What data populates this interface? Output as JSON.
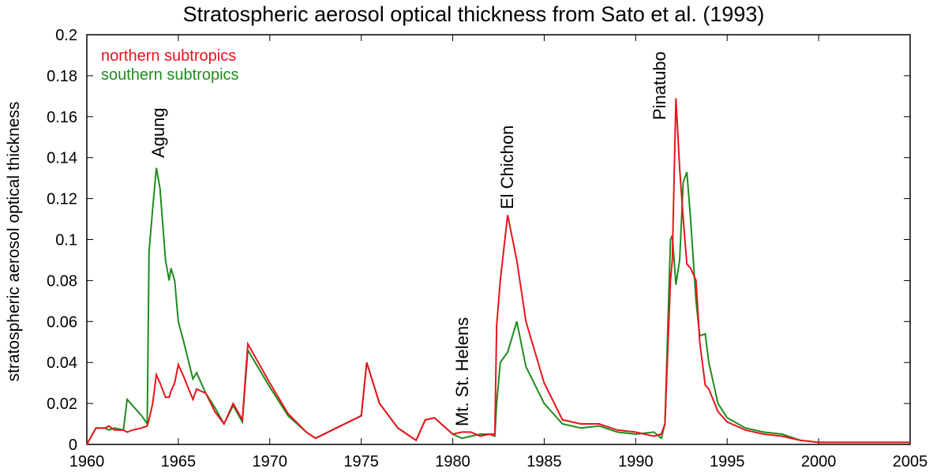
{
  "chart_data": {
    "type": "line",
    "title": "Stratospheric aerosol optical thickness from Sato et al. (1993)",
    "y_label": "stratospheric aerosol optical thickness",
    "x": [
      1960.0,
      1960.5,
      1961.0,
      1961.2,
      1961.5,
      1962.0,
      1962.2,
      1962.5,
      1963.0,
      1963.3,
      1963.4,
      1963.6,
      1963.8,
      1964.0,
      1964.3,
      1964.5,
      1964.6,
      1964.8,
      1965.0,
      1965.3,
      1965.8,
      1966.0,
      1966.5,
      1967.0,
      1967.5,
      1968.0,
      1968.5,
      1968.8,
      1970.0,
      1971.0,
      1972.0,
      1972.5,
      1975.0,
      1975.3,
      1976.0,
      1977.0,
      1978.0,
      1978.5,
      1979.0,
      1980.0,
      1980.5,
      1981.0,
      1981.5,
      1982.0,
      1982.3,
      1982.4,
      1982.6,
      1983.0,
      1983.5,
      1984.0,
      1985.0,
      1986.0,
      1987.0,
      1988.0,
      1989.0,
      1990.0,
      1991.0,
      1991.4,
      1991.6,
      1991.9,
      1992.0,
      1992.2,
      1992.4,
      1992.6,
      1992.8,
      1993.0,
      1993.3,
      1993.5,
      1993.8,
      1994.0,
      1994.5,
      1995.0,
      1996.0,
      1997.0,
      1998.0,
      1999.0,
      2000.0,
      2005.0
    ],
    "series": [
      {
        "name": "northern subtropics",
        "color": "#e8141c",
        "values": [
          0,
          0.008,
          0.008,
          0.009,
          0.007,
          0.007,
          0.006,
          0.007,
          0.008,
          0.009,
          0.012,
          0.02,
          0.034,
          0.03,
          0.023,
          0.023,
          0.026,
          0.03,
          0.039,
          0.033,
          0.022,
          0.027,
          0.025,
          0.016,
          0.01,
          0.02,
          0.012,
          0.049,
          0.03,
          0.015,
          0.006,
          0.003,
          0.014,
          0.04,
          0.02,
          0.008,
          0.002,
          0.012,
          0.013,
          0.005,
          0.006,
          0.006,
          0.004,
          0.005,
          0.005,
          0.058,
          0.08,
          0.112,
          0.09,
          0.06,
          0.03,
          0.012,
          0.01,
          0.01,
          0.007,
          0.006,
          0.004,
          0.005,
          0.01,
          0.08,
          0.09,
          0.169,
          0.135,
          0.11,
          0.088,
          0.086,
          0.08,
          0.05,
          0.029,
          0.027,
          0.016,
          0.011,
          0.007,
          0.005,
          0.004,
          0.002,
          0.001,
          0.001
        ]
      },
      {
        "name": "southern subtropics",
        "color": "#1e8c1e",
        "values": [
          0,
          0.008,
          0.008,
          0.007,
          0.008,
          0.007,
          0.022,
          0.019,
          0.014,
          0.01,
          0.094,
          0.115,
          0.135,
          0.125,
          0.09,
          0.08,
          0.086,
          0.08,
          0.06,
          0.05,
          0.032,
          0.035,
          0.025,
          0.018,
          0.01,
          0.019,
          0.011,
          0.046,
          0.028,
          0.014,
          0.006,
          0.003,
          0.014,
          0.04,
          0.02,
          0.008,
          0.002,
          0.012,
          0.013,
          0.005,
          0.003,
          0.004,
          0.005,
          0.005,
          0.004,
          0.02,
          0.04,
          0.045,
          0.06,
          0.038,
          0.02,
          0.01,
          0.008,
          0.009,
          0.006,
          0.005,
          0.006,
          0.003,
          0.01,
          0.1,
          0.102,
          0.078,
          0.09,
          0.128,
          0.133,
          0.11,
          0.07,
          0.053,
          0.054,
          0.04,
          0.02,
          0.013,
          0.008,
          0.006,
          0.005,
          0.002,
          0.001,
          0.001
        ]
      }
    ],
    "annotations": [
      "Agung",
      "Mt. St. Helens",
      "El Chichon",
      "Pinatubo"
    ],
    "xlim": [
      1960,
      2005
    ],
    "xticks": [
      1960,
      1965,
      1970,
      1975,
      1980,
      1985,
      1990,
      1995,
      2000,
      2005
    ],
    "ylim": [
      0,
      0.2
    ],
    "yticks": [
      0,
      0.02,
      0.04,
      0.06,
      0.08,
      0.1,
      0.12,
      0.14,
      0.16,
      0.18,
      0.2
    ],
    "legend": "top-left"
  }
}
